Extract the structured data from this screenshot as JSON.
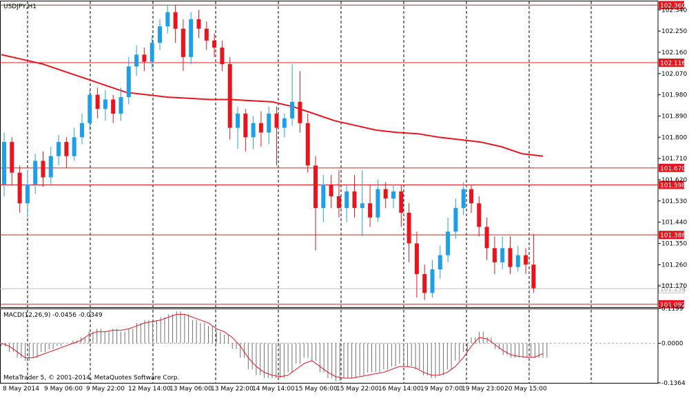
{
  "chart_data": {
    "type": "candlestick",
    "symbol_label": "USDJPY,H1",
    "footer": "MetaTrader 5, © 2001-2014, MetaQuotes Software Corp.",
    "price_axis": {
      "ylim": [
        101.08,
        102.37
      ],
      "ticks": [
        "102.340",
        "102.250",
        "102.160",
        "102.070",
        "101.980",
        "101.890",
        "101.800",
        "101.710",
        "101.620",
        "101.530",
        "101.440",
        "101.350",
        "101.260",
        "101.170"
      ]
    },
    "horizontal_levels": [
      {
        "value": 102.36,
        "label": "102.360"
      },
      {
        "value": 102.116,
        "label": "102.116"
      },
      {
        "value": 101.67,
        "label": "101.670"
      },
      {
        "value": 101.598,
        "label": "101.598"
      },
      {
        "value": 101.386,
        "label": "101.386"
      },
      {
        "value": 101.092,
        "label": "101.092"
      }
    ],
    "current_price": {
      "value": 101.158,
      "label": "101.158"
    },
    "time_axis": {
      "labels": [
        "8 May 2014",
        "9 May 06:00",
        "9 May 22:00",
        "12 May 14:00",
        "13 May 06:00",
        "13 May 22:00",
        "14 May 14:00",
        "15 May 06:00",
        "15 May 22:00",
        "16 May 14:00",
        "19 May 07:00",
        "19 May 23:00",
        "20 May 15:00"
      ]
    },
    "moving_average": {
      "color": "#e8141e",
      "values": [
        102.15,
        102.13,
        102.11,
        102.08,
        102.05,
        102.02,
        101.99,
        101.98,
        101.97,
        101.965,
        101.96,
        101.96,
        101.955,
        101.95,
        101.93,
        101.9,
        101.87,
        101.85,
        101.83,
        101.82,
        101.815,
        101.8,
        101.79,
        101.78,
        101.76,
        101.73,
        101.72
      ]
    },
    "candles": [
      [
        101.6,
        101.78,
        101.82,
        101.55
      ],
      [
        101.78,
        101.65,
        101.8,
        101.6
      ],
      [
        101.65,
        101.52,
        101.68,
        101.48
      ],
      [
        101.52,
        101.6,
        101.66,
        101.46
      ],
      [
        101.6,
        101.7,
        101.73,
        101.56
      ],
      [
        101.7,
        101.63,
        101.74,
        101.59
      ],
      [
        101.63,
        101.72,
        101.76,
        101.6
      ],
      [
        101.72,
        101.78,
        101.81,
        101.68
      ],
      [
        101.78,
        101.72,
        101.8,
        101.67
      ],
      [
        101.72,
        101.8,
        101.84,
        101.7
      ],
      [
        101.8,
        101.86,
        101.9,
        101.77
      ],
      [
        101.86,
        101.98,
        102.0,
        101.83
      ],
      [
        101.98,
        101.92,
        102.01,
        101.88
      ],
      [
        101.92,
        101.96,
        102.0,
        101.87
      ],
      [
        101.96,
        101.9,
        101.98,
        101.86
      ],
      [
        101.9,
        101.97,
        102.01,
        101.87
      ],
      [
        101.97,
        102.1,
        102.14,
        101.94
      ],
      [
        102.1,
        102.15,
        102.19,
        102.06
      ],
      [
        102.15,
        102.12,
        102.18,
        102.08
      ],
      [
        102.12,
        102.2,
        102.23,
        102.09
      ],
      [
        102.2,
        102.27,
        102.3,
        102.17
      ],
      [
        102.27,
        102.33,
        102.36,
        102.24
      ],
      [
        102.33,
        102.26,
        102.36,
        102.2
      ],
      [
        102.26,
        102.14,
        102.3,
        102.08
      ],
      [
        102.14,
        102.3,
        102.33,
        102.11
      ],
      [
        102.3,
        102.26,
        102.34,
        102.22
      ],
      [
        102.26,
        102.21,
        102.29,
        102.17
      ],
      [
        102.21,
        102.18,
        102.24,
        102.14
      ],
      [
        102.18,
        102.11,
        102.21,
        102.08
      ],
      [
        102.11,
        101.84,
        102.14,
        101.79
      ],
      [
        101.84,
        101.9,
        101.93,
        101.75
      ],
      [
        101.9,
        101.8,
        101.92,
        101.74
      ],
      [
        101.8,
        101.86,
        101.89,
        101.75
      ],
      [
        101.86,
        101.82,
        101.91,
        101.76
      ],
      [
        101.82,
        101.9,
        101.93,
        101.77
      ],
      [
        101.9,
        101.84,
        101.93,
        101.68
      ],
      [
        101.84,
        101.88,
        101.9,
        101.8
      ],
      [
        101.88,
        101.95,
        102.11,
        101.85
      ],
      [
        101.95,
        101.86,
        102.08,
        101.82
      ],
      [
        101.86,
        101.68,
        101.9,
        101.65
      ],
      [
        101.68,
        101.5,
        101.72,
        101.32
      ],
      [
        101.5,
        101.6,
        101.64,
        101.44
      ],
      [
        101.6,
        101.55,
        101.64,
        101.5
      ],
      [
        101.55,
        101.5,
        101.66,
        101.46
      ],
      [
        101.5,
        101.57,
        101.6,
        101.44
      ],
      [
        101.57,
        101.5,
        101.64,
        101.46
      ],
      [
        101.5,
        101.52,
        101.66,
        101.38
      ],
      [
        101.52,
        101.46,
        101.6,
        101.42
      ],
      [
        101.46,
        101.58,
        101.62,
        101.44
      ],
      [
        101.58,
        101.54,
        101.61,
        101.5
      ],
      [
        101.54,
        101.57,
        101.6,
        101.5
      ],
      [
        101.57,
        101.48,
        101.6,
        101.42
      ],
      [
        101.48,
        101.35,
        101.52,
        101.27
      ],
      [
        101.35,
        101.22,
        101.4,
        101.12
      ],
      [
        101.22,
        101.14,
        101.26,
        101.11
      ],
      [
        101.14,
        101.24,
        101.28,
        101.12
      ],
      [
        101.24,
        101.3,
        101.34,
        101.2
      ],
      [
        101.3,
        101.4,
        101.46,
        101.27
      ],
      [
        101.4,
        101.5,
        101.54,
        101.37
      ],
      [
        101.5,
        101.58,
        101.61,
        101.47
      ],
      [
        101.58,
        101.52,
        101.6,
        101.48
      ],
      [
        101.52,
        101.42,
        101.55,
        101.38
      ],
      [
        101.42,
        101.33,
        101.46,
        101.28
      ],
      [
        101.33,
        101.27,
        101.38,
        101.22
      ],
      [
        101.27,
        101.33,
        101.38,
        101.24
      ],
      [
        101.33,
        101.25,
        101.38,
        101.22
      ],
      [
        101.25,
        101.3,
        101.34,
        101.23
      ],
      [
        101.3,
        101.26,
        101.33,
        101.22
      ],
      [
        101.26,
        101.16,
        101.39,
        101.14
      ]
    ],
    "macd": {
      "label": "MACD(12,26,9) -0.0456 -0.0349",
      "ylim": [
        -0.1364,
        0.1199
      ],
      "ticks": [
        "0.1199",
        "0.0000",
        "-0.1364"
      ],
      "hist": [
        -0.01,
        -0.03,
        -0.05,
        -0.06,
        -0.05,
        -0.03,
        -0.02,
        -0.01,
        0.0,
        0.01,
        0.02,
        0.04,
        0.05,
        0.04,
        0.05,
        0.04,
        0.05,
        0.07,
        0.08,
        0.08,
        0.09,
        0.1,
        0.11,
        0.1,
        0.08,
        0.07,
        0.06,
        0.04,
        0.03,
        -0.02,
        -0.05,
        -0.09,
        -0.11,
        -0.12,
        -0.12,
        -0.12,
        -0.1,
        -0.07,
        -0.05,
        -0.06,
        -0.1,
        -0.12,
        -0.13,
        -0.12,
        -0.12,
        -0.11,
        -0.1,
        -0.1,
        -0.09,
        -0.08,
        -0.07,
        -0.08,
        -0.09,
        -0.11,
        -0.12,
        -0.11,
        -0.09,
        -0.06,
        -0.03,
        0.02,
        0.04,
        0.02,
        -0.02,
        -0.04,
        -0.05,
        -0.05,
        -0.05,
        -0.05,
        -0.05
      ],
      "signal": [
        0.0,
        -0.01,
        -0.03,
        -0.05,
        -0.05,
        -0.04,
        -0.03,
        -0.02,
        -0.01,
        0.0,
        0.01,
        0.03,
        0.04,
        0.04,
        0.045,
        0.045,
        0.05,
        0.06,
        0.07,
        0.075,
        0.08,
        0.09,
        0.1,
        0.1,
        0.09,
        0.08,
        0.07,
        0.05,
        0.04,
        0.02,
        -0.01,
        -0.05,
        -0.08,
        -0.1,
        -0.11,
        -0.115,
        -0.11,
        -0.09,
        -0.07,
        -0.06,
        -0.08,
        -0.1,
        -0.115,
        -0.12,
        -0.12,
        -0.115,
        -0.11,
        -0.105,
        -0.1,
        -0.09,
        -0.08,
        -0.08,
        -0.085,
        -0.1,
        -0.11,
        -0.11,
        -0.1,
        -0.08,
        -0.05,
        -0.01,
        0.02,
        0.015,
        -0.005,
        -0.025,
        -0.04,
        -0.045,
        -0.048,
        -0.048,
        -0.035
      ]
    }
  }
}
